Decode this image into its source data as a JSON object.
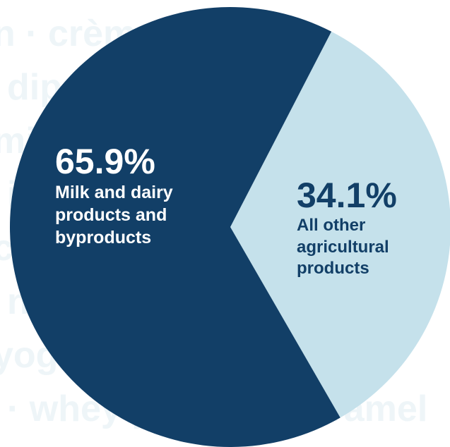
{
  "watermark": [
    "n · crème · whey",
    "dip · dairy",
    "milk · cheese · s",
    "ice · milk · s",
    "cream · butter",
    "n · whey · cream",
    "yogurt · texture",
    "· whey protein · caramel"
  ],
  "chart_data": {
    "type": "pie",
    "categories": [
      "All other agricultural products",
      "Milk and dairy products and byproducts"
    ],
    "values": [
      34.1,
      65.9
    ],
    "value_labels": [
      "34.1%",
      "65.9%"
    ],
    "colors": [
      "#c5e1eb",
      "#123f67"
    ]
  }
}
